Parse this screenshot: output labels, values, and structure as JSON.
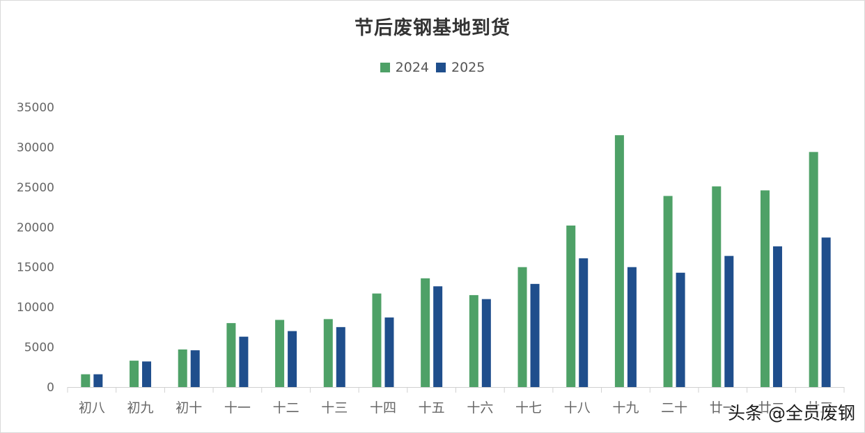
{
  "chart_data": {
    "type": "bar",
    "title": "节后废钢基地到货",
    "xlabel": "",
    "ylabel": "",
    "categories": [
      "初八",
      "初九",
      "初十",
      "十一",
      "十二",
      "十三",
      "十四",
      "十五",
      "十六",
      "十七",
      "十八",
      "十九",
      "二十",
      "廿一",
      "廿二",
      "廿三"
    ],
    "series": [
      {
        "name": "2024",
        "color": "#4ea167",
        "values": [
          1600,
          3300,
          4700,
          8000,
          8400,
          8500,
          11700,
          13600,
          11500,
          15000,
          20200,
          31500,
          23900,
          25100,
          24600,
          29400
        ]
      },
      {
        "name": "2025",
        "color": "#1f4e8c",
        "values": [
          1600,
          3200,
          4600,
          6300,
          7000,
          7500,
          8700,
          12600,
          11000,
          12900,
          16100,
          15000,
          14300,
          16400,
          17600,
          18700
        ]
      }
    ],
    "ylim": [
      0,
      35000
    ],
    "yticks": [
      0,
      5000,
      10000,
      15000,
      20000,
      25000,
      30000,
      35000
    ],
    "grid": false,
    "legend_position": "top-center"
  },
  "watermark": "头条 @全员废钢"
}
